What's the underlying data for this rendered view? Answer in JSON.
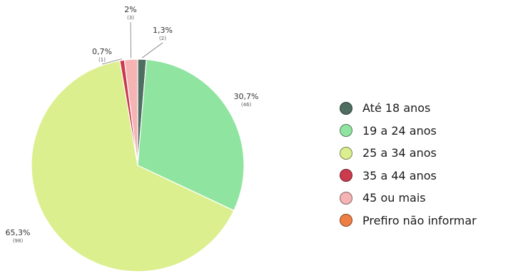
{
  "chart_data": {
    "type": "pie",
    "categories": [
      "Até 18 anos",
      "19 a 24 anos",
      "25 a 34 anos",
      "35 a 44 anos",
      "45 ou mais",
      "Prefiro não informar"
    ],
    "values": [
      1.3,
      30.7,
      65.3,
      0.7,
      2.0,
      0.0
    ],
    "counts": [
      2,
      46,
      98,
      1,
      3,
      0
    ],
    "pct_labels": [
      "1,3%",
      "30,7%",
      "65,3%",
      "0,7%",
      "2%",
      ""
    ],
    "count_labels": [
      "(2)",
      "(46)",
      "(98)",
      "(1)",
      "(3)",
      ""
    ],
    "colors": [
      "#4e6e62",
      "#8fe4a0",
      "#dcef8f",
      "#cc3a4e",
      "#f6b3b3",
      "#ee7e44"
    ],
    "legend_position": "right"
  }
}
